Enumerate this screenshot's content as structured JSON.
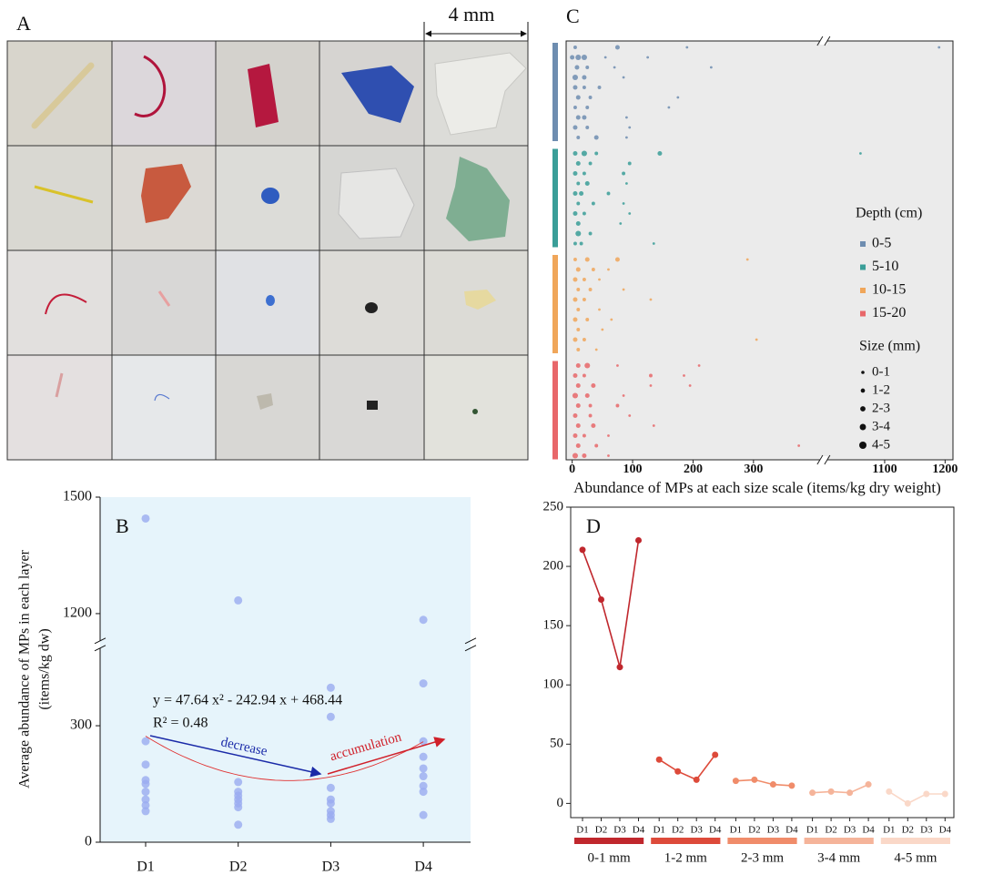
{
  "panel_a": {
    "label": "A",
    "scale_bar": "4 mm"
  },
  "chart_data": [
    {
      "type": "scatter",
      "panel": "B",
      "y_label": [
        "Average abundance of MPs in each layer",
        "(items/kg dw)"
      ],
      "categories": [
        "D1",
        "D2",
        "D3",
        "D4"
      ],
      "x": [
        "D1",
        "D1",
        "D1",
        "D1",
        "D1",
        "D1",
        "D1",
        "D1",
        "D1",
        "D2",
        "D2",
        "D2",
        "D2",
        "D2",
        "D2",
        "D2",
        "D2",
        "D3",
        "D3",
        "D3",
        "D3",
        "D3",
        "D3",
        "D3",
        "D3",
        "D4",
        "D4",
        "D4",
        "D4",
        "D4",
        "D4",
        "D4",
        "D4",
        "D4"
      ],
      "values": [
        1445,
        260,
        200,
        160,
        150,
        130,
        110,
        95,
        80,
        1234,
        155,
        130,
        120,
        110,
        100,
        90,
        45,
        398,
        323,
        140,
        110,
        100,
        80,
        70,
        60,
        1184,
        409,
        260,
        220,
        190,
        170,
        145,
        130,
        70
      ],
      "color": "#9aabf0",
      "ylim": [
        0,
        1500
      ],
      "y_break": [
        500,
        1130
      ],
      "yticks": [
        0,
        300,
        1200,
        1500
      ],
      "fit_equation": "y = 47.64 x² - 242.94 x + 468.44",
      "fit_r2": "R² = 0.48",
      "fit_coefficients": [
        47.64,
        -242.94,
        468.44
      ],
      "annotations": [
        "decrease",
        "accumulation"
      ]
    },
    {
      "type": "bubble",
      "panel": "C",
      "x_label": "Abundance of MPs at each size scale (items/kg dry weight)",
      "xlim": [
        -10,
        1213
      ],
      "x_break": [
        410,
        1005
      ],
      "xticks": [
        0,
        100,
        200,
        300,
        1100,
        1200
      ],
      "legend_color_title": "Depth (cm)",
      "legend_size_title": "Size (mm)",
      "size_classes": [
        "0-1",
        "1-2",
        "2-3",
        "3-4",
        "4-5"
      ],
      "series": [
        {
          "name": "0-5",
          "color": "#6e8db0",
          "rows": [
            0,
            0,
            0,
            0,
            1,
            1,
            1,
            1,
            1,
            2,
            2,
            2,
            2,
            3,
            3,
            3,
            4,
            4,
            4,
            5,
            5,
            5,
            6,
            6,
            6,
            7,
            7,
            7,
            8,
            8,
            8,
            9,
            9,
            9
          ],
          "values": [
            5,
            75,
            190,
            1190,
            0,
            10,
            20,
            55,
            125,
            8,
            25,
            70,
            230,
            5,
            20,
            85,
            5,
            20,
            45,
            10,
            30,
            175,
            5,
            25,
            160,
            10,
            20,
            90,
            5,
            25,
            95,
            10,
            40,
            90
          ],
          "sizes": [
            "1-2",
            "2-3",
            "0-1",
            "0-1",
            "2-3",
            "3-4",
            "3-4",
            "0-1",
            "0-1",
            "2-3",
            "1-2",
            "0-1",
            "0-1",
            "3-4",
            "2-3",
            "0-1",
            "2-3",
            "1-2",
            "1-2",
            "2-3",
            "1-2",
            "0-1",
            "1-2",
            "1-2",
            "0-1",
            "2-3",
            "2-3",
            "0-1",
            "2-3",
            "1-2",
            "0-1",
            "1-2",
            "2-3",
            "0-1"
          ]
        },
        {
          "name": "5-10",
          "color": "#3a9e98",
          "rows": [
            0,
            0,
            0,
            0,
            0,
            1,
            1,
            1,
            2,
            2,
            2,
            3,
            3,
            3,
            4,
            4,
            4,
            5,
            5,
            5,
            6,
            6,
            6,
            7,
            7,
            8,
            8,
            9,
            9,
            9
          ],
          "values": [
            5,
            20,
            40,
            145,
            1060,
            10,
            30,
            95,
            5,
            20,
            85,
            10,
            25,
            90,
            5,
            15,
            60,
            10,
            35,
            85,
            5,
            20,
            95,
            10,
            80,
            10,
            30,
            5,
            15,
            135
          ],
          "sizes": [
            "2-3",
            "3-4",
            "1-2",
            "2-3",
            "0-1",
            "2-3",
            "1-2",
            "1-2",
            "2-3",
            "1-2",
            "1-2",
            "1-2",
            "2-3",
            "0-1",
            "2-3",
            "2-3",
            "1-2",
            "1-2",
            "1-2",
            "0-1",
            "2-3",
            "1-2",
            "0-1",
            "2-3",
            "0-1",
            "3-4",
            "1-2",
            "1-2",
            "1-2",
            "0-1"
          ]
        },
        {
          "name": "10-15",
          "color": "#f0a65a",
          "rows": [
            0,
            0,
            0,
            0,
            1,
            1,
            1,
            2,
            2,
            2,
            3,
            3,
            3,
            4,
            4,
            4,
            5,
            5,
            6,
            6,
            6,
            7,
            7,
            8,
            8,
            8,
            9,
            9
          ],
          "values": [
            5,
            25,
            75,
            290,
            10,
            35,
            60,
            5,
            20,
            45,
            10,
            30,
            85,
            5,
            20,
            130,
            10,
            45,
            5,
            25,
            65,
            10,
            50,
            5,
            20,
            305,
            10,
            40
          ],
          "sizes": [
            "1-2",
            "2-3",
            "2-3",
            "0-1",
            "2-3",
            "1-2",
            "0-1",
            "2-3",
            "1-2",
            "0-1",
            "1-2",
            "1-2",
            "0-1",
            "2-3",
            "1-2",
            "0-1",
            "1-2",
            "0-1",
            "2-3",
            "1-2",
            "0-1",
            "1-2",
            "0-1",
            "2-3",
            "1-2",
            "0-1",
            "1-2",
            "0-1"
          ]
        },
        {
          "name": "15-20",
          "color": "#e8676a",
          "rows": [
            0,
            0,
            0,
            0,
            1,
            1,
            1,
            1,
            2,
            2,
            2,
            2,
            3,
            3,
            3,
            4,
            4,
            4,
            5,
            5,
            5,
            6,
            6,
            6,
            7,
            7,
            7,
            8,
            8,
            8,
            9,
            9,
            9
          ],
          "values": [
            10,
            25,
            75,
            210,
            5,
            20,
            130,
            185,
            10,
            35,
            130,
            195,
            5,
            25,
            85,
            10,
            30,
            75,
            5,
            30,
            95,
            10,
            35,
            135,
            5,
            20,
            60,
            10,
            40,
            375,
            5,
            20,
            60
          ],
          "sizes": [
            "2-3",
            "3-4",
            "0-1",
            "0-1",
            "2-3",
            "1-2",
            "1-2",
            "0-1",
            "2-3",
            "2-3",
            "0-1",
            "0-1",
            "3-4",
            "2-3",
            "0-1",
            "2-3",
            "1-2",
            "1-2",
            "2-3",
            "1-2",
            "0-1",
            "2-3",
            "2-3",
            "0-1",
            "2-3",
            "1-2",
            "0-1",
            "2-3",
            "1-2",
            "0-1",
            "3-4",
            "2-3",
            "0-1"
          ]
        }
      ]
    },
    {
      "type": "line",
      "panel": "D",
      "categories": [
        "D1",
        "D2",
        "D3",
        "D4"
      ],
      "ylim": [
        -12,
        250
      ],
      "yticks": [
        0,
        50,
        100,
        150,
        200,
        250
      ],
      "series": [
        {
          "name": "0-1 mm",
          "color": "#c0272d",
          "values": [
            214,
            172,
            115,
            222
          ]
        },
        {
          "name": "1-2 mm",
          "color": "#dd4a3a",
          "values": [
            37,
            27,
            20,
            41
          ]
        },
        {
          "name": "2-3 mm",
          "color": "#f08c6a",
          "values": [
            19,
            20,
            16,
            15
          ]
        },
        {
          "name": "3-4 mm",
          "color": "#f5b49a",
          "values": [
            9,
            10,
            9,
            16
          ]
        },
        {
          "name": "4-5 mm",
          "color": "#fad8c8",
          "values": [
            10,
            0,
            8,
            8
          ]
        }
      ]
    }
  ]
}
